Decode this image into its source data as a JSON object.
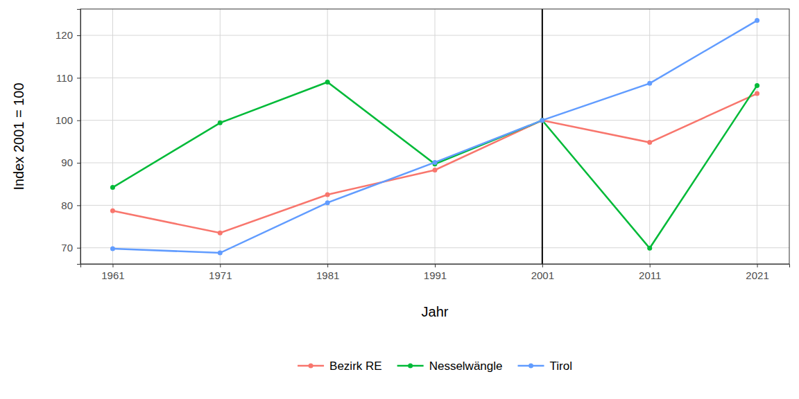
{
  "chart_data": {
    "type": "line",
    "x_label": "Jahr",
    "y_label": "Index 2001 = 100",
    "x": [
      1961,
      1971,
      1981,
      1991,
      2001,
      2011,
      2021
    ],
    "series": [
      {
        "name": "Bezirk RE",
        "color": "#F8766D",
        "marker": "circle",
        "values": [
          78.7,
          73.5,
          82.5,
          88.3,
          100,
          94.8,
          106.3
        ]
      },
      {
        "name": "Nesselwängle",
        "color": "#00BA38",
        "marker": "circle",
        "values": [
          84.2,
          99.4,
          109.0,
          89.7,
          100,
          69.9,
          108.2
        ]
      },
      {
        "name": "Tirol",
        "color": "#619CFF",
        "marker": "circle",
        "values": [
          69.8,
          68.8,
          80.6,
          90.1,
          100,
          108.7,
          123.5
        ]
      }
    ],
    "vline": 2001,
    "xlim": [
      1958,
      2024
    ],
    "xticks": [
      1961,
      1971,
      1981,
      1991,
      2001,
      2011,
      2021
    ],
    "ylim": [
      66.2,
      126.2
    ],
    "yticks": [
      70,
      80,
      90,
      100,
      110,
      120
    ],
    "grid": true,
    "legend": "bottom"
  }
}
